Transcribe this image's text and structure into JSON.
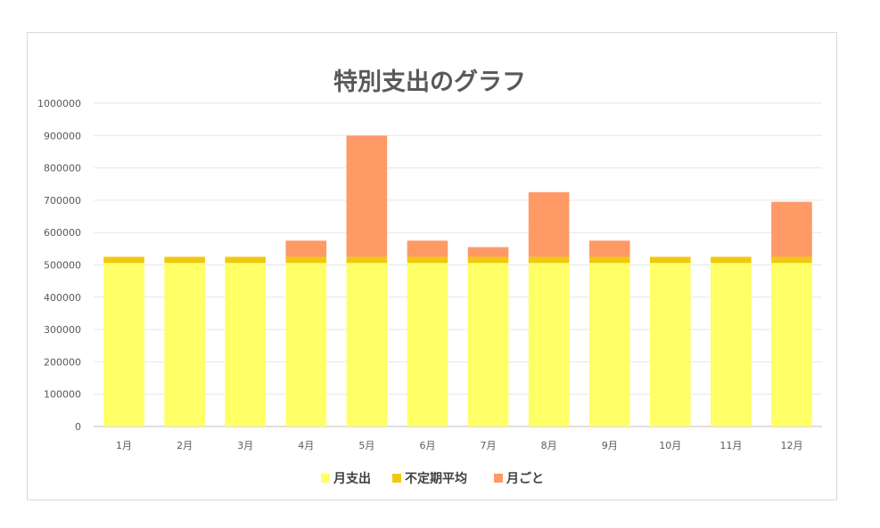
{
  "chart_data": {
    "type": "bar",
    "stacked": true,
    "title": "特別支出のグラフ",
    "categories": [
      "1月",
      "2月",
      "3月",
      "4月",
      "5月",
      "6月",
      "7月",
      "8月",
      "9月",
      "10月",
      "11月",
      "12月"
    ],
    "series": [
      {
        "name": "月支出",
        "color": "#FFFF66",
        "values": [
          506000,
          506000,
          506000,
          506000,
          506000,
          506000,
          506000,
          506000,
          506000,
          506000,
          506000,
          506000
        ]
      },
      {
        "name": "不定期平均",
        "color": "#F2C80F",
        "values": [
          19000,
          19000,
          19000,
          19000,
          19000,
          19000,
          19000,
          19000,
          19000,
          19000,
          19000,
          19000
        ]
      },
      {
        "name": "月ごと",
        "color": "#FF9966",
        "values": [
          0,
          0,
          0,
          50000,
          375000,
          50000,
          30000,
          200000,
          50000,
          0,
          0,
          170000
        ]
      }
    ],
    "ylim": [
      0,
      1000000
    ],
    "yticks": [
      "0",
      "100000",
      "200000",
      "300000",
      "400000",
      "500000",
      "600000",
      "700000",
      "800000",
      "900000",
      "1000000"
    ],
    "grid": true,
    "legend": "bottom"
  }
}
